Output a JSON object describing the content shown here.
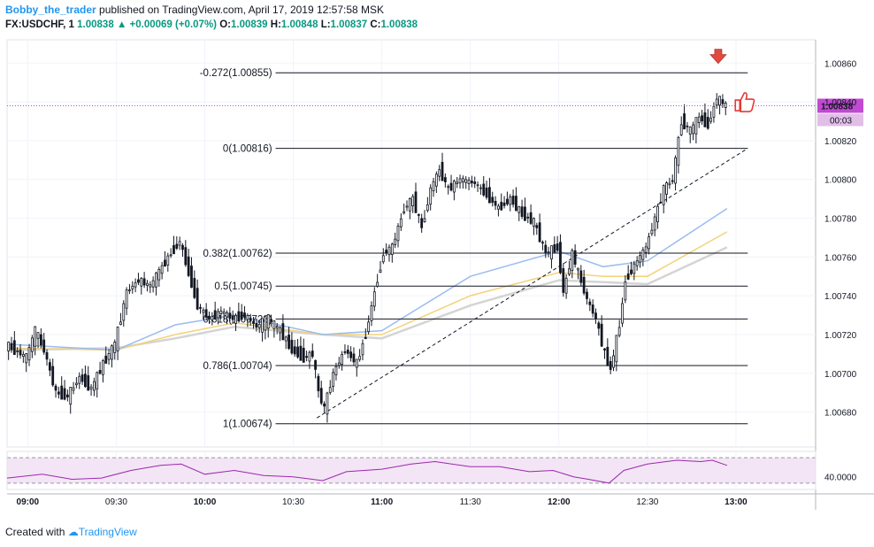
{
  "header": {
    "author": "Bobby_the_trader",
    "published": "published on TradingView.com, April 17, 2019 12:57:58 MSK",
    "symbol": "FX:USDCHF, 1",
    "last": "1.00838",
    "change": "+0.00069 (+0.07%)",
    "open_label": "O:",
    "open": "1.00839",
    "high_label": "H:",
    "high": "1.00848",
    "low_label": "L:",
    "low": "1.00837",
    "close_label": "C:",
    "close": "1.00838"
  },
  "footer": {
    "created_with": "Created with",
    "brand": "TradingView"
  },
  "colors": {
    "up": "#089981",
    "candle": "#131722",
    "ma_blue": "#9bbcf0",
    "ma_yellow": "#f2d27a",
    "ma_gray": "#d4d4d4",
    "rsi_line": "#9c27b0",
    "rsi_band": "#f3e5f5",
    "price_tag": "#c04ad1",
    "arrow": "#e04a3f"
  },
  "chart_data": [
    {
      "type": "candlestick",
      "symbol": "FX:USDCHF",
      "interval": "1",
      "x_ticks": [
        "09:00",
        "09:30",
        "10:00",
        "10:30",
        "11:00",
        "11:30",
        "12:00",
        "12:30",
        "13:00"
      ],
      "x_range": [
        "08:53",
        "13:27"
      ],
      "y_ticks": [
        "1.00860",
        "1.00840",
        "1.00820",
        "1.00800",
        "1.00780",
        "1.00760",
        "1.00740",
        "1.00720",
        "1.00700",
        "1.00680"
      ],
      "ylim": [
        1.00662,
        1.00872
      ],
      "last_price_label": "1.00838",
      "countdown_label": "00:03",
      "close_series": [
        [
          "08:53",
          1.00715
        ],
        [
          "09:00",
          1.00708
        ],
        [
          "09:03",
          1.00722
        ],
        [
          "09:06",
          1.00712
        ],
        [
          "09:10",
          1.0069
        ],
        [
          "09:14",
          1.00688
        ],
        [
          "09:18",
          1.00698
        ],
        [
          "09:22",
          1.00692
        ],
        [
          "09:26",
          1.00705
        ],
        [
          "09:30",
          1.00715
        ],
        [
          "09:34",
          1.00742
        ],
        [
          "09:38",
          1.00748
        ],
        [
          "09:42",
          1.00745
        ],
        [
          "09:46",
          1.00755
        ],
        [
          "09:49",
          1.00762
        ],
        [
          "09:52",
          1.00768
        ],
        [
          "09:55",
          1.00752
        ],
        [
          "09:58",
          1.00735
        ],
        [
          "10:02",
          1.00728
        ],
        [
          "10:06",
          1.00732
        ],
        [
          "10:10",
          1.00728
        ],
        [
          "10:14",
          1.0073
        ],
        [
          "10:18",
          1.00724
        ],
        [
          "10:22",
          1.00728
        ],
        [
          "10:26",
          1.00722
        ],
        [
          "10:30",
          1.00712
        ],
        [
          "10:34",
          1.00708
        ],
        [
          "10:37",
          1.0071
        ],
        [
          "10:39",
          1.0069
        ],
        [
          "10:41",
          1.00682
        ],
        [
          "10:44",
          1.007
        ],
        [
          "10:48",
          1.00712
        ],
        [
          "10:52",
          1.00705
        ],
        [
          "10:55",
          1.0072
        ],
        [
          "10:58",
          1.00742
        ],
        [
          "11:01",
          1.00762
        ],
        [
          "11:04",
          1.00765
        ],
        [
          "11:08",
          1.00785
        ],
        [
          "11:11",
          1.0079
        ],
        [
          "11:14",
          1.00775
        ],
        [
          "11:17",
          1.00795
        ],
        [
          "11:20",
          1.00805
        ],
        [
          "11:23",
          1.00795
        ],
        [
          "11:27",
          1.008
        ],
        [
          "11:32",
          1.00798
        ],
        [
          "11:36",
          1.00792
        ],
        [
          "11:40",
          1.00785
        ],
        [
          "11:44",
          1.0079
        ],
        [
          "11:48",
          1.00782
        ],
        [
          "11:52",
          1.00778
        ],
        [
          "11:56",
          1.00762
        ],
        [
          "12:00",
          1.00765
        ],
        [
          "12:02",
          1.00742
        ],
        [
          "12:05",
          1.00762
        ],
        [
          "12:07",
          1.00752
        ],
        [
          "12:10",
          1.00738
        ],
        [
          "12:13",
          1.00728
        ],
        [
          "12:16",
          1.0071
        ],
        [
          "12:18",
          1.00702
        ],
        [
          "12:21",
          1.00725
        ],
        [
          "12:23",
          1.00748
        ],
        [
          "12:27",
          1.00758
        ],
        [
          "12:30",
          1.00765
        ],
        [
          "12:33",
          1.0078
        ],
        [
          "12:36",
          1.00795
        ],
        [
          "12:39",
          1.008
        ],
        [
          "12:42",
          1.0083
        ],
        [
          "12:45",
          1.00825
        ],
        [
          "12:48",
          1.00832
        ],
        [
          "12:51",
          1.00828
        ],
        [
          "12:54",
          1.00842
        ],
        [
          "12:57",
          1.00838
        ]
      ],
      "moving_averages": [
        {
          "color": "blue",
          "points": [
            [
              "08:53",
              1.00715
            ],
            [
              "09:30",
              1.00712
            ],
            [
              "09:50",
              1.00725
            ],
            [
              "10:10",
              1.0073
            ],
            [
              "10:40",
              1.0072
            ],
            [
              "11:00",
              1.00722
            ],
            [
              "11:30",
              1.0075
            ],
            [
              "12:00",
              1.00763
            ],
            [
              "12:15",
              1.00755
            ],
            [
              "12:30",
              1.00758
            ],
            [
              "12:57",
              1.00785
            ]
          ]
        },
        {
          "color": "yellow",
          "points": [
            [
              "08:53",
              1.00713
            ],
            [
              "09:30",
              1.00712
            ],
            [
              "09:50",
              1.0072
            ],
            [
              "10:10",
              1.00726
            ],
            [
              "10:40",
              1.0072
            ],
            [
              "11:00",
              1.0072
            ],
            [
              "11:30",
              1.0074
            ],
            [
              "12:00",
              1.00752
            ],
            [
              "12:15",
              1.0075
            ],
            [
              "12:30",
              1.0075
            ],
            [
              "12:57",
              1.00773
            ]
          ]
        },
        {
          "color": "gray",
          "points": [
            [
              "08:53",
              1.00712
            ],
            [
              "09:30",
              1.00713
            ],
            [
              "09:50",
              1.00718
            ],
            [
              "10:10",
              1.00724
            ],
            [
              "10:40",
              1.0072
            ],
            [
              "11:00",
              1.00718
            ],
            [
              "11:30",
              1.00735
            ],
            [
              "12:00",
              1.00748
            ],
            [
              "12:15",
              1.00747
            ],
            [
              "12:30",
              1.00746
            ],
            [
              "12:57",
              1.00765
            ]
          ]
        }
      ],
      "fibonacci": [
        {
          "label": "-0.272(1.00855)",
          "value": 1.00855
        },
        {
          "label": "0(1.00816)",
          "value": 1.00816
        },
        {
          "label": "0.382(1.00762)",
          "value": 1.00762
        },
        {
          "label": "0.5(1.00745)",
          "value": 1.00745
        },
        {
          "label": "0.618(1.00728)",
          "value": 1.00728
        },
        {
          "label": "0.786(1.00704)",
          "value": 1.00704
        },
        {
          "label": "1(1.00674)",
          "value": 1.00674
        }
      ],
      "fib_range": [
        "10:24",
        "13:04"
      ],
      "trendline": [
        [
          "10:38",
          1.00677
        ],
        [
          "13:04",
          1.00816
        ]
      ],
      "annotations": [
        "down-arrow at high (12:54)",
        "thumbs-up icon at 12:58"
      ]
    },
    {
      "type": "line",
      "name": "RSI",
      "y_ticks": [
        "40.0000"
      ],
      "ylim": [
        20,
        80
      ],
      "upper_band": 70,
      "lower_band": 30,
      "values": [
        [
          "08:53",
          38
        ],
        [
          "09:05",
          44
        ],
        [
          "09:15",
          36
        ],
        [
          "09:25",
          38
        ],
        [
          "09:35",
          50
        ],
        [
          "09:45",
          58
        ],
        [
          "09:52",
          60
        ],
        [
          "10:00",
          44
        ],
        [
          "10:10",
          50
        ],
        [
          "10:20",
          42
        ],
        [
          "10:30",
          40
        ],
        [
          "10:40",
          34
        ],
        [
          "10:48",
          48
        ],
        [
          "11:00",
          52
        ],
        [
          "11:10",
          60
        ],
        [
          "11:18",
          64
        ],
        [
          "11:30",
          56
        ],
        [
          "11:40",
          56
        ],
        [
          "11:50",
          48
        ],
        [
          "11:58",
          50
        ],
        [
          "12:05",
          40
        ],
        [
          "12:10",
          36
        ],
        [
          "12:17",
          30
        ],
        [
          "12:22",
          50
        ],
        [
          "12:30",
          60
        ],
        [
          "12:40",
          66
        ],
        [
          "12:48",
          64
        ],
        [
          "12:52",
          66
        ],
        [
          "12:57",
          58
        ]
      ]
    }
  ]
}
